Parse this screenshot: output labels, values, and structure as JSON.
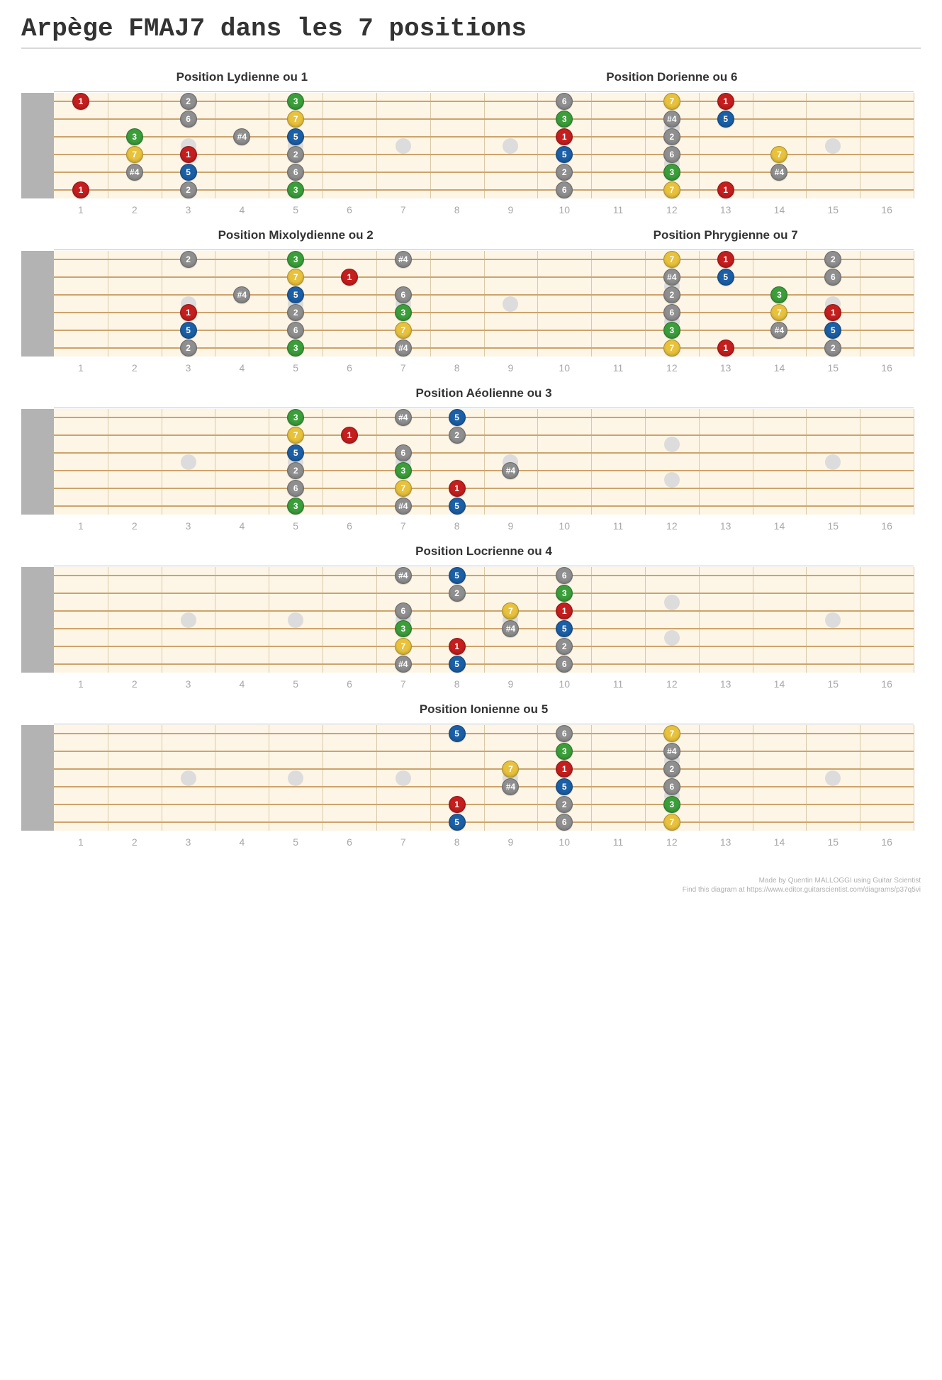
{
  "title": "Arpège FMAJ7 dans les 7 positions",
  "footer_line1": "Made by Quentin MALLOGGI using Guitar Scientist",
  "footer_line2": "Find this diagram at https://www.editor.guitarscientist.com/diagrams/p37q5vi",
  "num_frets": 16,
  "num_strings": 6,
  "colors": {
    "1": "#c41e1e",
    "2": "#8f8f8f",
    "3": "#3b9e3b",
    "#4": "#8f8f8f",
    "5": "#1b5fa6",
    "6": "#8f8f8f",
    "7": "#e8c23c"
  },
  "board_bg": "#fdf5e6",
  "string_color": "#cda36b",
  "nut_color": "#b3b3b3",
  "marker_color": "#dcdcdc",
  "marker_frets_single": [
    3,
    5,
    7,
    9,
    15
  ],
  "marker_frets_double": [
    12
  ],
  "boards": [
    {
      "sections": [
        {
          "title": "Position Lydienne ou 1",
          "start": 1,
          "end": 7
        },
        {
          "title": "Position Dorienne ou 6",
          "start": 8,
          "end": 16
        }
      ],
      "notes": [
        {
          "s": 1,
          "f": 1,
          "l": "1"
        },
        {
          "s": 1,
          "f": 3,
          "l": "2"
        },
        {
          "s": 1,
          "f": 5,
          "l": "3"
        },
        {
          "s": 2,
          "f": 3,
          "l": "6"
        },
        {
          "s": 2,
          "f": 5,
          "l": "7"
        },
        {
          "s": 3,
          "f": 2,
          "l": "3"
        },
        {
          "s": 3,
          "f": 4,
          "l": "#4"
        },
        {
          "s": 3,
          "f": 5,
          "l": "5"
        },
        {
          "s": 4,
          "f": 2,
          "l": "7"
        },
        {
          "s": 4,
          "f": 3,
          "l": "1"
        },
        {
          "s": 4,
          "f": 5,
          "l": "2"
        },
        {
          "s": 5,
          "f": 2,
          "l": "#4"
        },
        {
          "s": 5,
          "f": 3,
          "l": "5"
        },
        {
          "s": 5,
          "f": 5,
          "l": "6"
        },
        {
          "s": 6,
          "f": 1,
          "l": "1"
        },
        {
          "s": 6,
          "f": 3,
          "l": "2"
        },
        {
          "s": 6,
          "f": 5,
          "l": "3"
        },
        {
          "s": 1,
          "f": 10,
          "l": "6"
        },
        {
          "s": 1,
          "f": 12,
          "l": "7"
        },
        {
          "s": 1,
          "f": 13,
          "l": "1"
        },
        {
          "s": 2,
          "f": 10,
          "l": "3"
        },
        {
          "s": 2,
          "f": 12,
          "l": "#4"
        },
        {
          "s": 2,
          "f": 13,
          "l": "5"
        },
        {
          "s": 3,
          "f": 10,
          "l": "1"
        },
        {
          "s": 3,
          "f": 12,
          "l": "2"
        },
        {
          "s": 4,
          "f": 10,
          "l": "5"
        },
        {
          "s": 4,
          "f": 12,
          "l": "6"
        },
        {
          "s": 4,
          "f": 14,
          "l": "7"
        },
        {
          "s": 5,
          "f": 10,
          "l": "2"
        },
        {
          "s": 5,
          "f": 12,
          "l": "3"
        },
        {
          "s": 5,
          "f": 14,
          "l": "#4"
        },
        {
          "s": 6,
          "f": 10,
          "l": "6"
        },
        {
          "s": 6,
          "f": 12,
          "l": "7"
        },
        {
          "s": 6,
          "f": 13,
          "l": "1"
        }
      ]
    },
    {
      "sections": [
        {
          "title": "Position Mixolydienne ou 2",
          "start": 1,
          "end": 9
        },
        {
          "title": "Position Phrygienne ou 7",
          "start": 10,
          "end": 16
        }
      ],
      "notes": [
        {
          "s": 1,
          "f": 3,
          "l": "2"
        },
        {
          "s": 1,
          "f": 5,
          "l": "3"
        },
        {
          "s": 1,
          "f": 7,
          "l": "#4"
        },
        {
          "s": 2,
          "f": 5,
          "l": "7"
        },
        {
          "s": 2,
          "f": 6,
          "l": "1"
        },
        {
          "s": 3,
          "f": 4,
          "l": "#4"
        },
        {
          "s": 3,
          "f": 5,
          "l": "5"
        },
        {
          "s": 3,
          "f": 7,
          "l": "6"
        },
        {
          "s": 4,
          "f": 3,
          "l": "1"
        },
        {
          "s": 4,
          "f": 5,
          "l": "2"
        },
        {
          "s": 4,
          "f": 7,
          "l": "3"
        },
        {
          "s": 5,
          "f": 3,
          "l": "5"
        },
        {
          "s": 5,
          "f": 5,
          "l": "6"
        },
        {
          "s": 5,
          "f": 7,
          "l": "7"
        },
        {
          "s": 6,
          "f": 3,
          "l": "2"
        },
        {
          "s": 6,
          "f": 5,
          "l": "3"
        },
        {
          "s": 6,
          "f": 7,
          "l": "#4"
        },
        {
          "s": 1,
          "f": 12,
          "l": "7"
        },
        {
          "s": 1,
          "f": 13,
          "l": "1"
        },
        {
          "s": 1,
          "f": 15,
          "l": "2"
        },
        {
          "s": 2,
          "f": 12,
          "l": "#4"
        },
        {
          "s": 2,
          "f": 13,
          "l": "5"
        },
        {
          "s": 2,
          "f": 15,
          "l": "6"
        },
        {
          "s": 3,
          "f": 12,
          "l": "2"
        },
        {
          "s": 3,
          "f": 14,
          "l": "3"
        },
        {
          "s": 4,
          "f": 12,
          "l": "6"
        },
        {
          "s": 4,
          "f": 14,
          "l": "7"
        },
        {
          "s": 4,
          "f": 15,
          "l": "1"
        },
        {
          "s": 5,
          "f": 12,
          "l": "3"
        },
        {
          "s": 5,
          "f": 14,
          "l": "#4"
        },
        {
          "s": 5,
          "f": 15,
          "l": "5"
        },
        {
          "s": 6,
          "f": 12,
          "l": "7"
        },
        {
          "s": 6,
          "f": 13,
          "l": "1"
        },
        {
          "s": 6,
          "f": 15,
          "l": "2"
        }
      ]
    },
    {
      "sections": [
        {
          "title": "Position Aéolienne ou 3",
          "start": 1,
          "end": 16
        }
      ],
      "notes": [
        {
          "s": 1,
          "f": 5,
          "l": "3"
        },
        {
          "s": 1,
          "f": 7,
          "l": "#4"
        },
        {
          "s": 1,
          "f": 8,
          "l": "5"
        },
        {
          "s": 2,
          "f": 5,
          "l": "7"
        },
        {
          "s": 2,
          "f": 6,
          "l": "1"
        },
        {
          "s": 2,
          "f": 8,
          "l": "2"
        },
        {
          "s": 3,
          "f": 5,
          "l": "5"
        },
        {
          "s": 3,
          "f": 7,
          "l": "6"
        },
        {
          "s": 4,
          "f": 5,
          "l": "2"
        },
        {
          "s": 4,
          "f": 7,
          "l": "3"
        },
        {
          "s": 4,
          "f": 9,
          "l": "#4"
        },
        {
          "s": 5,
          "f": 5,
          "l": "6"
        },
        {
          "s": 5,
          "f": 7,
          "l": "7"
        },
        {
          "s": 5,
          "f": 8,
          "l": "1"
        },
        {
          "s": 6,
          "f": 5,
          "l": "3"
        },
        {
          "s": 6,
          "f": 7,
          "l": "#4"
        },
        {
          "s": 6,
          "f": 8,
          "l": "5"
        }
      ]
    },
    {
      "sections": [
        {
          "title": "Position Locrienne ou 4",
          "start": 1,
          "end": 16
        }
      ],
      "notes": [
        {
          "s": 1,
          "f": 7,
          "l": "#4"
        },
        {
          "s": 1,
          "f": 8,
          "l": "5"
        },
        {
          "s": 1,
          "f": 10,
          "l": "6"
        },
        {
          "s": 2,
          "f": 8,
          "l": "2"
        },
        {
          "s": 2,
          "f": 10,
          "l": "3"
        },
        {
          "s": 3,
          "f": 7,
          "l": "6"
        },
        {
          "s": 3,
          "f": 9,
          "l": "7"
        },
        {
          "s": 3,
          "f": 10,
          "l": "1"
        },
        {
          "s": 4,
          "f": 7,
          "l": "3"
        },
        {
          "s": 4,
          "f": 9,
          "l": "#4"
        },
        {
          "s": 4,
          "f": 10,
          "l": "5"
        },
        {
          "s": 5,
          "f": 7,
          "l": "7"
        },
        {
          "s": 5,
          "f": 8,
          "l": "1"
        },
        {
          "s": 5,
          "f": 10,
          "l": "2"
        },
        {
          "s": 6,
          "f": 7,
          "l": "#4"
        },
        {
          "s": 6,
          "f": 8,
          "l": "5"
        },
        {
          "s": 6,
          "f": 10,
          "l": "6"
        }
      ]
    },
    {
      "sections": [
        {
          "title": "Position Ionienne ou 5",
          "start": 1,
          "end": 16
        }
      ],
      "notes": [
        {
          "s": 1,
          "f": 8,
          "l": "5"
        },
        {
          "s": 1,
          "f": 10,
          "l": "6"
        },
        {
          "s": 1,
          "f": 12,
          "l": "7"
        },
        {
          "s": 2,
          "f": 10,
          "l": "3"
        },
        {
          "s": 2,
          "f": 12,
          "l": "#4"
        },
        {
          "s": 3,
          "f": 9,
          "l": "7"
        },
        {
          "s": 3,
          "f": 10,
          "l": "1"
        },
        {
          "s": 3,
          "f": 12,
          "l": "2"
        },
        {
          "s": 4,
          "f": 9,
          "l": "#4"
        },
        {
          "s": 4,
          "f": 10,
          "l": "5"
        },
        {
          "s": 4,
          "f": 12,
          "l": "6"
        },
        {
          "s": 5,
          "f": 8,
          "l": "1"
        },
        {
          "s": 5,
          "f": 10,
          "l": "2"
        },
        {
          "s": 5,
          "f": 12,
          "l": "3"
        },
        {
          "s": 6,
          "f": 8,
          "l": "5"
        },
        {
          "s": 6,
          "f": 10,
          "l": "6"
        },
        {
          "s": 6,
          "f": 12,
          "l": "7"
        }
      ]
    }
  ]
}
